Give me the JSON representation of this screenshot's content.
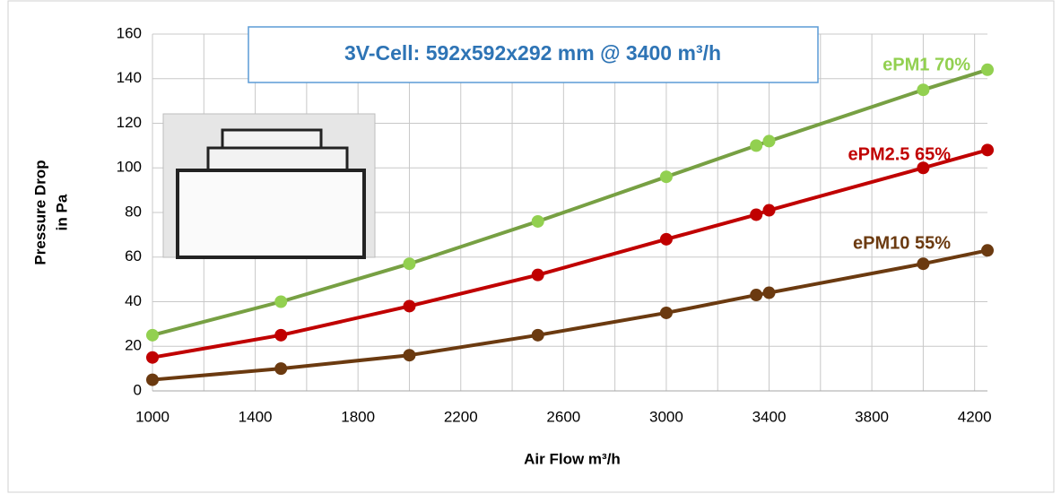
{
  "chart_data": {
    "type": "line",
    "title": "3V-Cell: 592x592x292 mm @ 3400 m³/h",
    "x_label": "Air Flow m³/h",
    "y_label": [
      "Pressure Drop",
      "in Pa"
    ],
    "x": [
      1000,
      1500,
      2000,
      2500,
      3000,
      3350,
      3400,
      4000,
      4250
    ],
    "series": [
      {
        "name": "ePM1 70%",
        "color": "#77a043",
        "marker_color": "#92d050",
        "values": [
          25,
          40,
          57,
          76,
          96,
          110,
          112,
          135,
          144
        ]
      },
      {
        "name": "ePM2.5 65%",
        "color": "#c00000",
        "marker_color": "#c00000",
        "values": [
          15,
          25,
          38,
          52,
          68,
          79,
          81,
          100,
          108
        ]
      },
      {
        "name": "ePM10 55%",
        "color": "#6b3a10",
        "marker_color": "#6b3a10",
        "values": [
          5,
          10,
          16,
          25,
          35,
          43,
          44,
          57,
          63
        ]
      }
    ],
    "xlim": [
      1000,
      4250
    ],
    "ylim": [
      0,
      160
    ],
    "xticks": [
      1000,
      1400,
      1800,
      2200,
      2600,
      3000,
      3400,
      3800,
      4200
    ],
    "x_minor_grid": [
      1200,
      1600,
      2000,
      2400,
      2800,
      3200,
      3600,
      4000
    ],
    "yticks": [
      0,
      20,
      40,
      60,
      80,
      100,
      120,
      140,
      160
    ],
    "grid": true
  }
}
